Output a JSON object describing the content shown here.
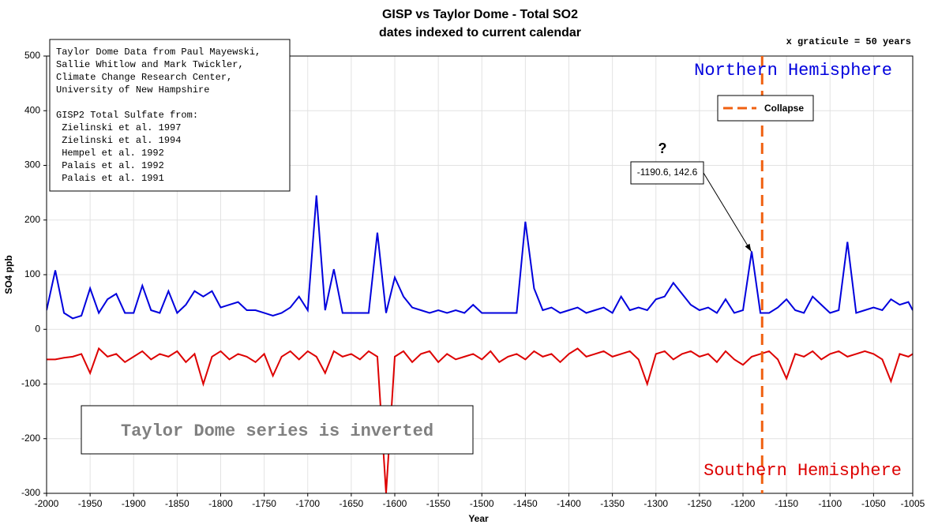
{
  "chart_data": {
    "type": "line",
    "title": "GISP vs Taylor Dome - Total SO2",
    "subtitle": "dates indexed to current calendar",
    "graticule_note": "x graticule = 50 years",
    "x_label": "Year",
    "y_label": "SO4 ppb",
    "xlim": [
      -2000,
      -1005
    ],
    "ylim": [
      -300,
      500
    ],
    "xticks": [
      -2000,
      -1950,
      -1900,
      -1850,
      -1800,
      -1750,
      -1700,
      -1650,
      -1600,
      -1550,
      -1500,
      -1450,
      -1400,
      -1350,
      -1300,
      -1250,
      -1200,
      -1150,
      -1100,
      -1050,
      -1005
    ],
    "yticks": [
      -300,
      -200,
      -100,
      0,
      100,
      200,
      300,
      400,
      500
    ],
    "grid": true,
    "x": [
      -2000,
      -1990,
      -1980,
      -1970,
      -1960,
      -1950,
      -1940,
      -1930,
      -1920,
      -1910,
      -1900,
      -1890,
      -1880,
      -1870,
      -1860,
      -1850,
      -1840,
      -1830,
      -1820,
      -1810,
      -1800,
      -1790,
      -1780,
      -1770,
      -1760,
      -1750,
      -1740,
      -1730,
      -1720,
      -1710,
      -1700,
      -1690,
      -1680,
      -1670,
      -1660,
      -1650,
      -1640,
      -1630,
      -1620,
      -1610,
      -1600,
      -1590,
      -1580,
      -1570,
      -1560,
      -1550,
      -1540,
      -1530,
      -1520,
      -1510,
      -1500,
      -1490,
      -1480,
      -1470,
      -1460,
      -1450,
      -1440,
      -1430,
      -1420,
      -1410,
      -1400,
      -1390,
      -1380,
      -1370,
      -1360,
      -1350,
      -1340,
      -1330,
      -1320,
      -1310,
      -1300,
      -1290,
      -1280,
      -1270,
      -1260,
      -1250,
      -1240,
      -1230,
      -1220,
      -1210,
      -1200,
      -1190,
      -1180,
      -1170,
      -1160,
      -1150,
      -1140,
      -1130,
      -1120,
      -1110,
      -1100,
      -1090,
      -1080,
      -1070,
      -1060,
      -1050,
      -1040,
      -1030,
      -1020,
      -1010,
      -1005
    ],
    "series": [
      {
        "color": "#0000dd",
        "values": [
          35,
          108,
          30,
          20,
          25,
          75,
          30,
          55,
          65,
          30,
          30,
          80,
          35,
          30,
          70,
          30,
          45,
          70,
          60,
          70,
          40,
          45,
          50,
          35,
          35,
          30,
          25,
          30,
          40,
          60,
          35,
          245,
          35,
          110,
          30,
          30,
          30,
          30,
          177,
          30,
          95,
          60,
          40,
          35,
          30,
          35,
          30,
          35,
          30,
          45,
          30,
          30,
          30,
          30,
          30,
          197,
          75,
          35,
          40,
          30,
          35,
          40,
          30,
          35,
          40,
          30,
          60,
          35,
          40,
          35,
          55,
          60,
          85,
          65,
          45,
          35,
          40,
          30,
          55,
          30,
          35,
          142.6,
          30,
          30,
          40,
          55,
          35,
          30,
          60,
          45,
          30,
          35,
          160,
          30,
          35,
          40,
          35,
          55,
          45,
          50,
          35
        ]
      },
      {
        "color": "#dd0000",
        "values": [
          -55,
          -55,
          -52,
          -50,
          -45,
          -80,
          -35,
          -50,
          -45,
          -60,
          -50,
          -40,
          -55,
          -45,
          -50,
          -40,
          -60,
          -45,
          -100,
          -50,
          -40,
          -55,
          -45,
          -50,
          -60,
          -45,
          -85,
          -50,
          -40,
          -55,
          -40,
          -50,
          -80,
          -40,
          -50,
          -45,
          -55,
          -40,
          -50,
          -300,
          -50,
          -40,
          -60,
          -45,
          -40,
          -60,
          -45,
          -55,
          -50,
          -45,
          -55,
          -40,
          -60,
          -50,
          -45,
          -55,
          -40,
          -50,
          -45,
          -60,
          -45,
          -35,
          -50,
          -45,
          -40,
          -50,
          -45,
          -40,
          -55,
          -100,
          -45,
          -40,
          -55,
          -45,
          -40,
          -50,
          -45,
          -60,
          -40,
          -55,
          -65,
          -50,
          -45,
          -40,
          -55,
          -90,
          -45,
          -50,
          -40,
          -55,
          -45,
          -40,
          -50,
          -45,
          -40,
          -45,
          -55,
          -95,
          -45,
          -50,
          -45
        ]
      }
    ],
    "vline": {
      "name": "Collapse",
      "x": -1178,
      "color": "#f06010"
    },
    "callout": {
      "question": "?",
      "label": "-1190.6, 142.6",
      "x": -1190.6,
      "y": 142.6
    },
    "region_labels": [
      {
        "text": "Northern Hemisphere",
        "color": "#0000dd"
      },
      {
        "text": "Southern Hemisphere",
        "color": "#dd0000"
      }
    ],
    "inverted_note": "Taylor Dome series is inverted",
    "sources": [
      "Taylor Dome Data from Paul Mayewski,",
      "Sallie Whitlow and Mark Twickler,",
      "Climate Change Research Center,",
      "University of New Hampshire",
      "GISP2 Total Sulfate from:",
      " Zielinski et al. 1997",
      " Zielinski et al. 1994",
      " Hempel et al. 1992",
      " Palais et al. 1992",
      " Palais et al. 1991"
    ]
  }
}
